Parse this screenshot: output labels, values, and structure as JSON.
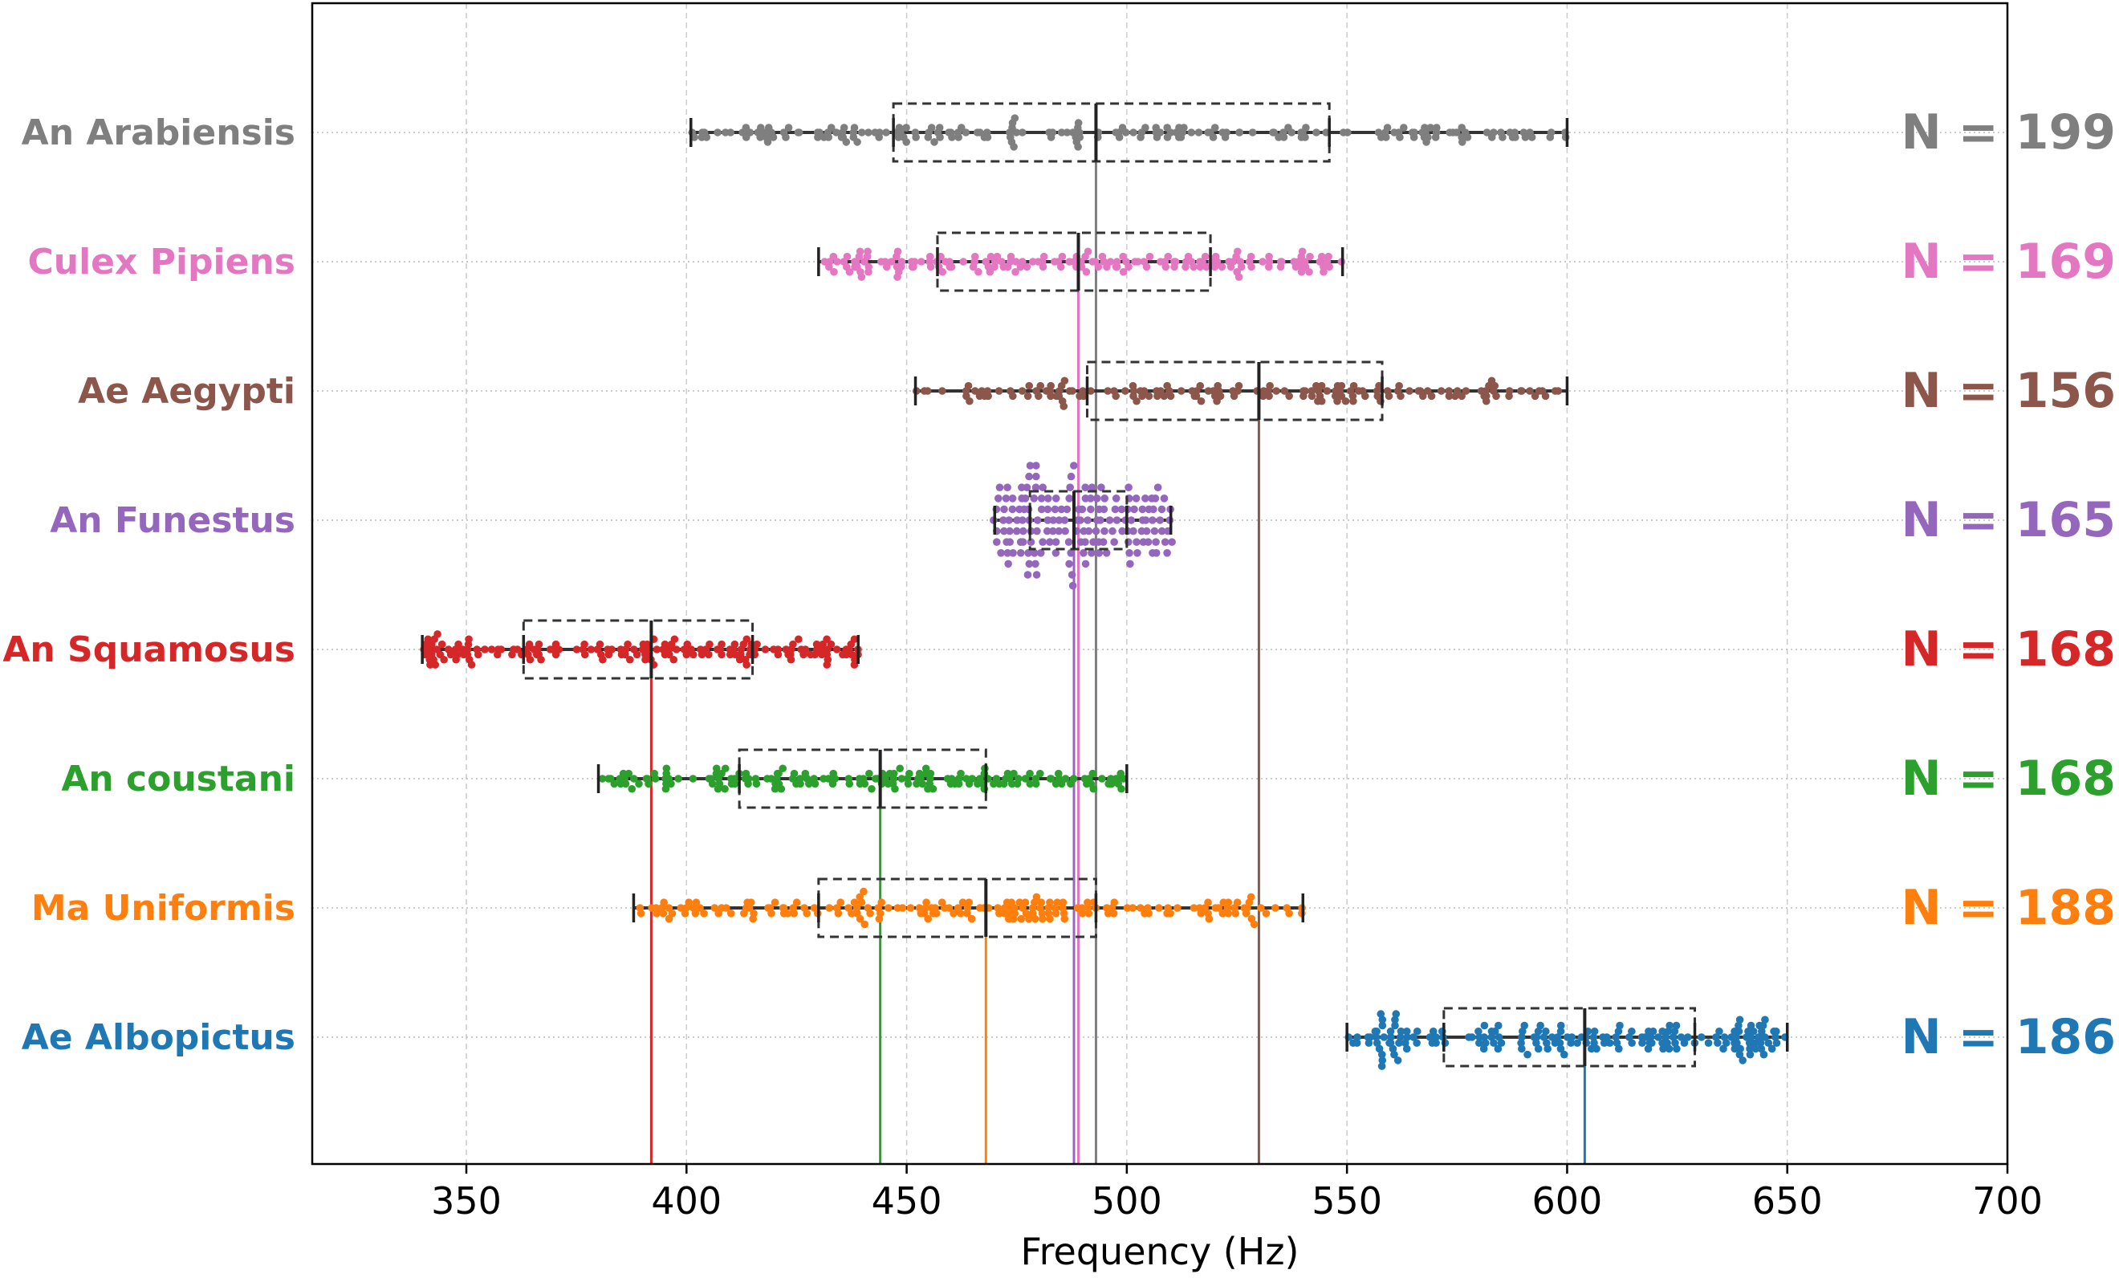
{
  "chart_data": {
    "type": "box-swarm",
    "orientation": "horizontal",
    "xlabel": "Frequency (Hz)",
    "ylabel": "",
    "title": "",
    "xlim": [
      315,
      700
    ],
    "xticks": [
      350,
      400,
      450,
      500,
      550,
      600,
      650,
      700
    ],
    "grid": true,
    "series": [
      {
        "name": "An Arabiensis",
        "color": "#7f7f7f",
        "n_label": "N = 199",
        "n": 199,
        "min": 401,
        "q1": 447,
        "median": 493,
        "q3": 546,
        "max": 600,
        "spread": 0.7
      },
      {
        "name": "Culex Pipiens",
        "color": "#e377c2",
        "n_label": "N = 169",
        "n": 169,
        "min": 430,
        "q1": 457,
        "median": 489,
        "q3": 519,
        "max": 549,
        "spread": 0.75
      },
      {
        "name": "Ae Aegypti",
        "color": "#8c564b",
        "n_label": "N = 156",
        "n": 156,
        "min": 452,
        "q1": 491,
        "median": 530,
        "q3": 558,
        "max": 600,
        "spread": 0.75
      },
      {
        "name": "An Funestus",
        "color": "#9467bd",
        "n_label": "N = 165",
        "n": 165,
        "min": 470,
        "q1": 478,
        "median": 488,
        "q3": 500,
        "max": 510,
        "spread": 1.6
      },
      {
        "name": "An Squamosus",
        "color": "#d62728",
        "n_label": "N = 168",
        "n": 168,
        "min": 340,
        "q1": 363,
        "median": 392,
        "q3": 415,
        "max": 439,
        "spread": 0.75
      },
      {
        "name": "An coustani",
        "color": "#2ca02c",
        "n_label": "N = 168",
        "n": 168,
        "min": 380,
        "q1": 412,
        "median": 444,
        "q3": 468,
        "max": 500,
        "spread": 0.75
      },
      {
        "name": "Ma Uniformis",
        "color": "#ff7f0e",
        "n_label": "N = 188",
        "n": 188,
        "min": 388,
        "q1": 430,
        "median": 468,
        "q3": 493,
        "max": 540,
        "spread": 0.8
      },
      {
        "name": "Ae Albopictus",
        "color": "#1f77b4",
        "n_label": "N = 186",
        "n": 186,
        "min": 550,
        "q1": 572,
        "median": 604,
        "q3": 629,
        "max": 650,
        "spread": 0.85
      }
    ]
  }
}
